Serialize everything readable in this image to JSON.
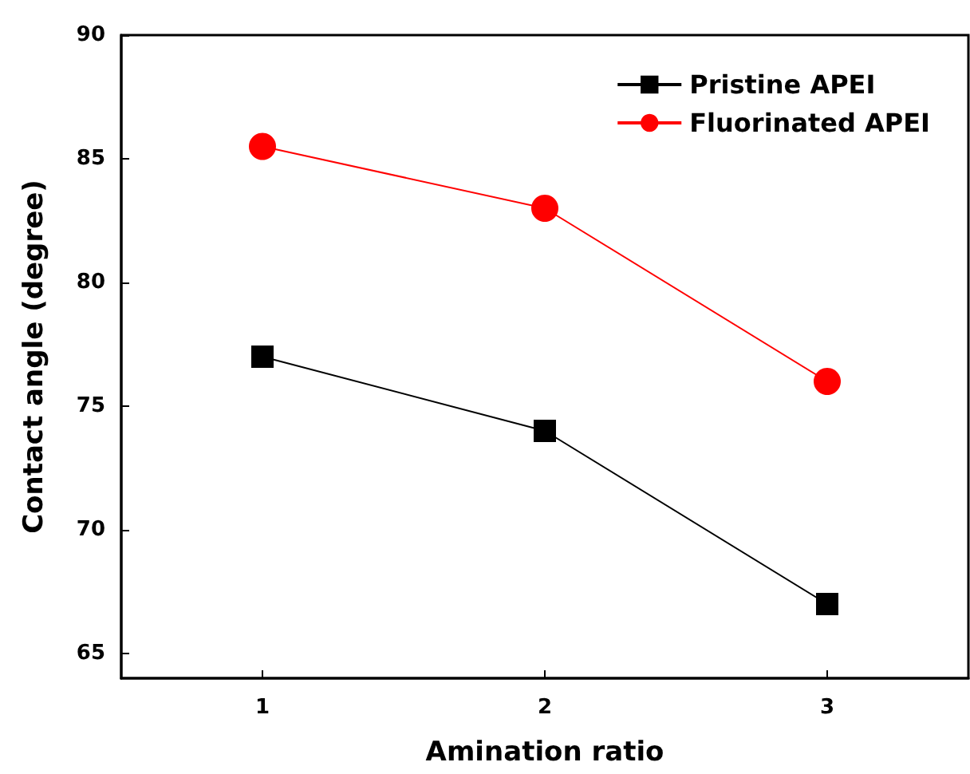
{
  "chart_data": {
    "type": "line",
    "xlabel": "Amination ratio",
    "ylabel": "Contact angle (degree)",
    "x": [
      1,
      2,
      3
    ],
    "xlim": [
      0.5,
      3.5
    ],
    "xticks": [
      1,
      2,
      3
    ],
    "ylim": [
      64,
      90
    ],
    "yticks": [
      65,
      70,
      75,
      80,
      85,
      90
    ],
    "grid": false,
    "legend": "top right",
    "line_style": "solid",
    "series": [
      {
        "name": "Pristine APEI",
        "color": "#000000",
        "marker": "square",
        "values": [
          77,
          74,
          67
        ]
      },
      {
        "name": "Fluorinated APEI",
        "color": "#ff0000",
        "marker": "circle",
        "values": [
          85.5,
          83,
          76
        ]
      }
    ]
  }
}
